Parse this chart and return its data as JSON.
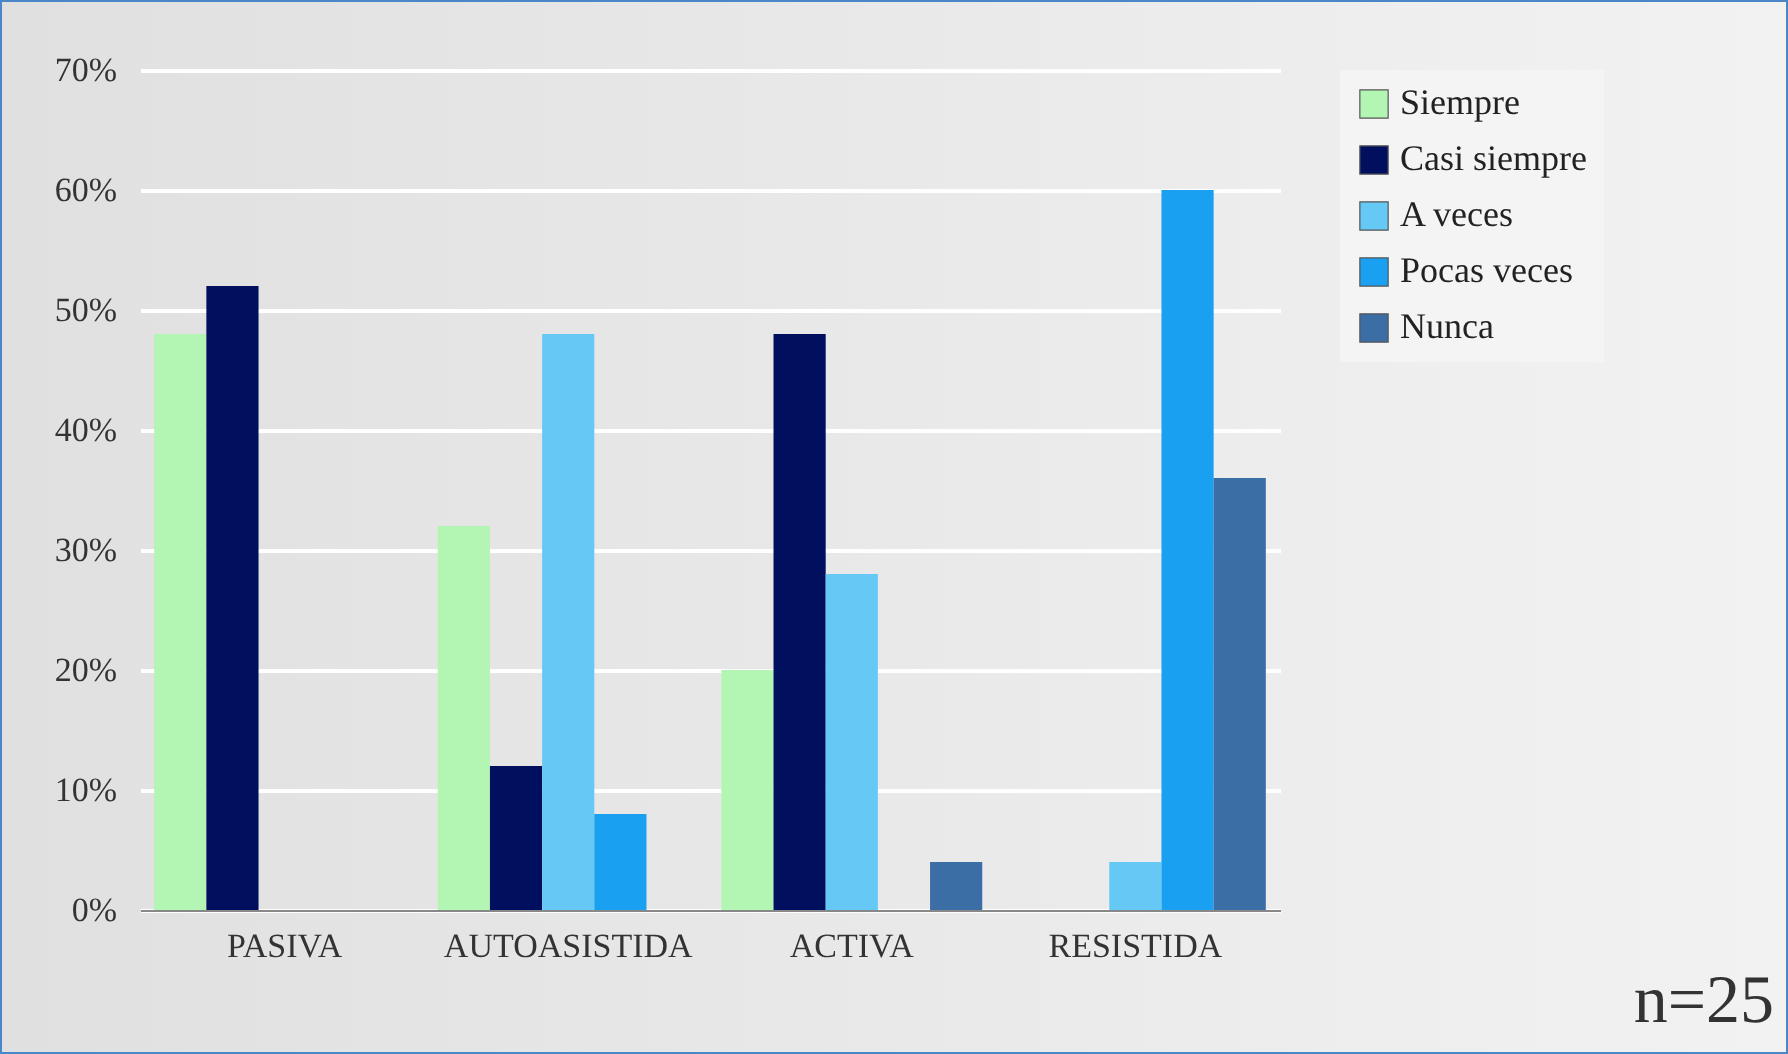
{
  "chart_data": {
    "type": "bar",
    "categories": [
      "PASIVA",
      "AUTOASISTIDA",
      "ACTIVA",
      "RESISTIDA"
    ],
    "series": [
      {
        "name": "Siempre",
        "color": "#b3f5b3",
        "values": [
          48,
          32,
          20,
          0
        ]
      },
      {
        "name": "Casi siempre",
        "color": "#00105e",
        "values": [
          52,
          12,
          48,
          0
        ]
      },
      {
        "name": "A veces",
        "color": "#66c8f5",
        "values": [
          0,
          48,
          28,
          4
        ]
      },
      {
        "name": "Pocas veces",
        "color": "#1aa0f0",
        "values": [
          0,
          8,
          0,
          60
        ]
      },
      {
        "name": "Nunca",
        "color": "#3a6ea5",
        "values": [
          0,
          0,
          4,
          36
        ]
      }
    ],
    "ylim": [
      0,
      70
    ],
    "yticks": [
      {
        "value": 0,
        "label": "0%"
      },
      {
        "value": 10,
        "label": "10%"
      },
      {
        "value": 20,
        "label": "20%"
      },
      {
        "value": 30,
        "label": "30%"
      },
      {
        "value": 40,
        "label": "40%"
      },
      {
        "value": 50,
        "label": "50%"
      },
      {
        "value": 60,
        "label": "60%"
      },
      {
        "value": 70,
        "label": "70%"
      }
    ],
    "grid": true,
    "legend": "right",
    "annotations": [
      "n=25"
    ]
  }
}
